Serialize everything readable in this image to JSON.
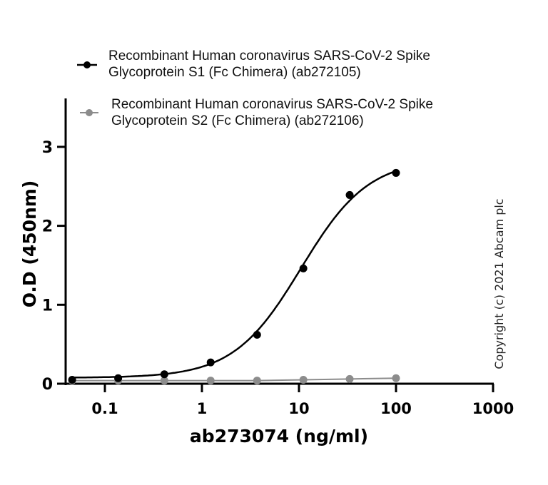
{
  "chart_data": {
    "type": "line",
    "title": "",
    "xlabel": "ab273074 (ng/ml)",
    "ylabel": "O.D (450nm)",
    "xscale": "log",
    "xlim": [
      0.04,
      1000
    ],
    "ylim": [
      0,
      3.5
    ],
    "xticks": [
      "0.1",
      "1",
      "10",
      "100",
      "1000"
    ],
    "yticks": [
      "0",
      "1",
      "2",
      "3"
    ],
    "x": [
      0.046,
      0.137,
      0.41,
      1.23,
      3.7,
      11.1,
      33.3,
      100
    ],
    "series": [
      {
        "name": "Recombinant Human coronavirus SARS-CoV-2 Spike Glycoprotein S1 (Fc Chimera) (ab272105)",
        "color": "#000000",
        "values": [
          0.05,
          0.07,
          0.12,
          0.27,
          0.62,
          1.46,
          2.39,
          2.67
        ],
        "fit": "sigmoid"
      },
      {
        "name": "Recombinant Human coronavirus SARS-CoV-2 Spike Glycoprotein S2 (Fc Chimera) (ab272106)",
        "color": "#8c8c8c",
        "values": [
          0.04,
          0.04,
          0.04,
          0.04,
          0.04,
          0.05,
          0.06,
          0.07
        ],
        "fit": "line"
      }
    ],
    "legend_position": "top",
    "grid": false,
    "annotations": [
      "Copyright (c) 2021 Abcam plc"
    ]
  },
  "legend": {
    "s1_line1": "Recombinant Human coronavirus SARS-CoV-2 Spike",
    "s1_line2": "Glycoprotein S1 (Fc Chimera) (ab272105)",
    "s2_line1": "Recombinant Human coronavirus SARS-CoV-2 Spike",
    "s2_line2": "Glycoprotein S2 (Fc Chimera) (ab272106)"
  },
  "copyright": "Copyright (c) 2021 Abcam plc"
}
